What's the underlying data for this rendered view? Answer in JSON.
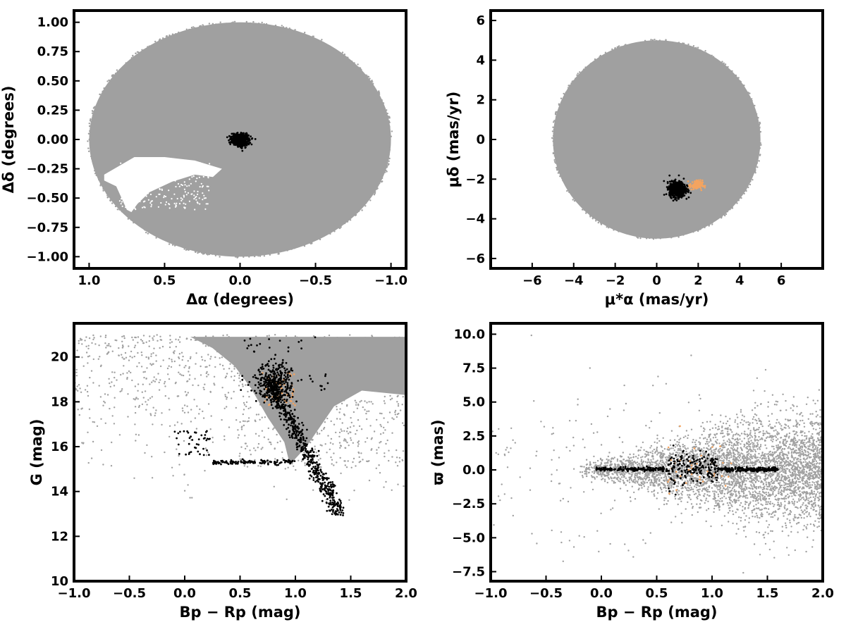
{
  "chart_data": [
    {
      "id": "sky",
      "type": "scatter",
      "xlabel": "Δα (degrees)",
      "ylabel": "Δδ (degrees)",
      "xlim": [
        1.1,
        -1.1
      ],
      "ylim": [
        -1.1,
        1.1
      ],
      "xticks": [
        1.0,
        0.5,
        0.0,
        -0.5,
        -1.0
      ],
      "xtick_labels": [
        "1.0",
        "0.5",
        "0.0",
        "−0.5",
        "−1.0"
      ],
      "yticks": [
        1.0,
        0.75,
        0.5,
        0.25,
        0.0,
        -0.25,
        -0.5,
        -0.75,
        -1.0
      ],
      "ytick_labels": [
        "1.00",
        "0.75",
        "0.50",
        "0.25",
        "0.00",
        "−0.25",
        "−0.50",
        "−0.75",
        "−1.00"
      ],
      "series": [
        {
          "role": "field",
          "color": "#a0a0a0",
          "shape": "disk",
          "center": [
            0.0,
            0.0
          ],
          "radius": 1.0,
          "gap_region": "white void near Δα 0.25–0.75, Δδ −0.2 to −0.6"
        },
        {
          "role": "members",
          "color": "#000000",
          "shape": "blob",
          "center": [
            0.0,
            0.0
          ],
          "radius": 0.06
        },
        {
          "role": "candidates",
          "color": "#f4a460"
        }
      ]
    },
    {
      "id": "proper-motion",
      "type": "scatter",
      "xlabel": "μ*α  (mas/yr)",
      "ylabel": "μδ (mas/yr)",
      "xlim": [
        -8,
        8
      ],
      "ylim": [
        -6.5,
        6.5
      ],
      "xticks": [
        -6,
        -4,
        -2,
        0,
        2,
        4,
        6
      ],
      "xtick_labels": [
        "−6",
        "−4",
        "−2",
        "0",
        "2",
        "4",
        "6"
      ],
      "yticks": [
        6,
        4,
        2,
        0,
        -2,
        -4,
        -6
      ],
      "ytick_labels": [
        "6",
        "4",
        "2",
        "0",
        "−2",
        "−4",
        "−6"
      ],
      "series": [
        {
          "role": "field",
          "color": "#a0a0a0",
          "shape": "disk",
          "center": [
            0.0,
            0.0
          ],
          "radius": 5.0
        },
        {
          "role": "members",
          "color": "#000000",
          "shape": "blob",
          "center": [
            1.0,
            -2.5
          ],
          "radius": 0.35
        },
        {
          "role": "candidates",
          "color": "#f4a460",
          "center": [
            1.9,
            -2.3
          ]
        }
      ]
    },
    {
      "id": "cmd",
      "type": "scatter",
      "xlabel": "Bp − Rp (mag)",
      "ylabel": "G (mag)",
      "xlim": [
        -1.0,
        2.0
      ],
      "ylim": [
        10,
        21.5
      ],
      "xticks": [
        -1.0,
        -0.5,
        0.0,
        0.5,
        1.0,
        1.5,
        2.0
      ],
      "xtick_labels": [
        "−1.0",
        "−0.5",
        "0.0",
        "0.5",
        "1.0",
        "1.5",
        "2.0"
      ],
      "yticks": [
        20,
        18,
        16,
        14,
        12,
        10
      ],
      "ytick_labels": [
        "20",
        "18",
        "16",
        "14",
        "12",
        "10"
      ],
      "series": [
        {
          "role": "field",
          "color": "#a0a0a0"
        },
        {
          "role": "members",
          "color": "#000000",
          "features": [
            "red giant branch from (0.75, 19.0) to (1.4, 13.0)",
            "horizontal branch at G ≈ 15.3, Bp−Rp 0.2–1.0",
            "blue stragglers near Bp−Rp 0.0–0.2, G ≈ 16–16.5"
          ]
        },
        {
          "role": "candidates",
          "color": "#f4a460"
        }
      ]
    },
    {
      "id": "parallax",
      "type": "scatter",
      "xlabel": "Bp − Rp (mag)",
      "ylabel": "ϖ (mas)",
      "xlim": [
        -1.0,
        2.0
      ],
      "ylim": [
        -8.2,
        10.8
      ],
      "xticks": [
        -1.0,
        -0.5,
        0.0,
        0.5,
        1.0,
        1.5,
        2.0
      ],
      "xtick_labels": [
        "−1.0",
        "−0.5",
        "0.0",
        "0.5",
        "1.0",
        "1.5",
        "2.0"
      ],
      "yticks": [
        10.0,
        7.5,
        5.0,
        2.5,
        0.0,
        -2.5,
        -5.0,
        -7.5
      ],
      "ytick_labels": [
        "10.0",
        "7.5",
        "5.0",
        "2.5",
        "0.0",
        "−2.5",
        "−5.0",
        "−7.5"
      ],
      "series": [
        {
          "role": "field",
          "color": "#a0a0a0",
          "center": 0.0
        },
        {
          "role": "members",
          "color": "#000000",
          "center": 0.05
        },
        {
          "role": "candidates",
          "color": "#f4a460"
        }
      ]
    }
  ]
}
